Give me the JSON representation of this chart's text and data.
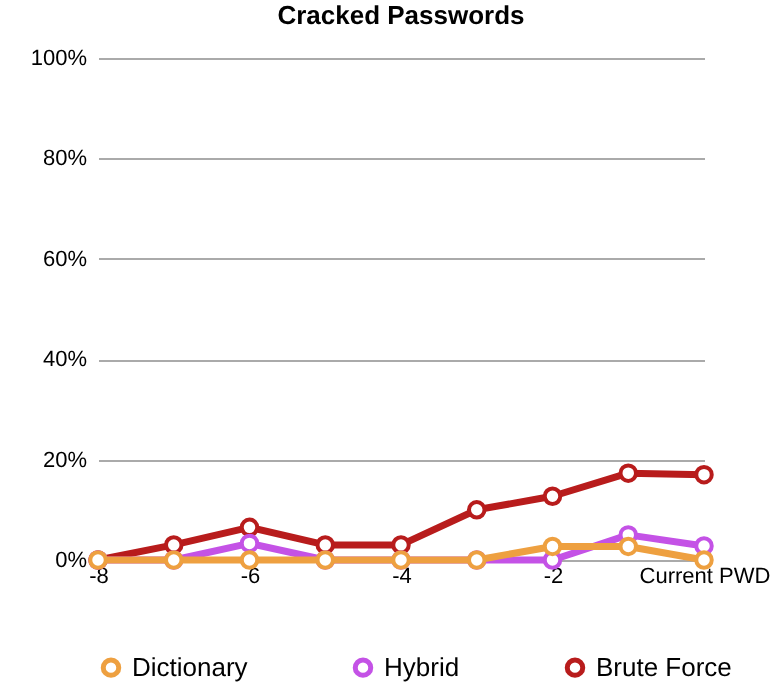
{
  "chart_data": {
    "type": "line",
    "title": "Cracked Passwords",
    "categories": [
      "-8",
      null,
      "-6",
      null,
      "-4",
      null,
      "-2",
      null,
      "Current PWD"
    ],
    "series": [
      {
        "name": "Dictionary",
        "color": "#eea040",
        "values": [
          0,
          0,
          0,
          0,
          0,
          0,
          2.7,
          2.7,
          0
        ]
      },
      {
        "name": "Hybrid",
        "color": "#c452e6",
        "values": [
          0,
          0,
          3.3,
          0,
          0,
          0,
          0,
          5,
          2.8
        ]
      },
      {
        "name": "Brute Force",
        "color": "#b81c1c",
        "values": [
          0,
          3,
          6.5,
          3,
          3,
          10,
          12.7,
          17.3,
          17
        ]
      }
    ],
    "ylim": [
      0,
      100
    ],
    "yticks": [
      {
        "value": 0,
        "label": "0%"
      },
      {
        "value": 20,
        "label": "20%"
      },
      {
        "value": 40,
        "label": "40%"
      },
      {
        "value": 60,
        "label": "60%"
      },
      {
        "value": 80,
        "label": "80%"
      },
      {
        "value": 100,
        "label": "100%"
      }
    ],
    "grid": "y",
    "legend": "bottom",
    "marker": "circle",
    "line_style": "solid"
  }
}
